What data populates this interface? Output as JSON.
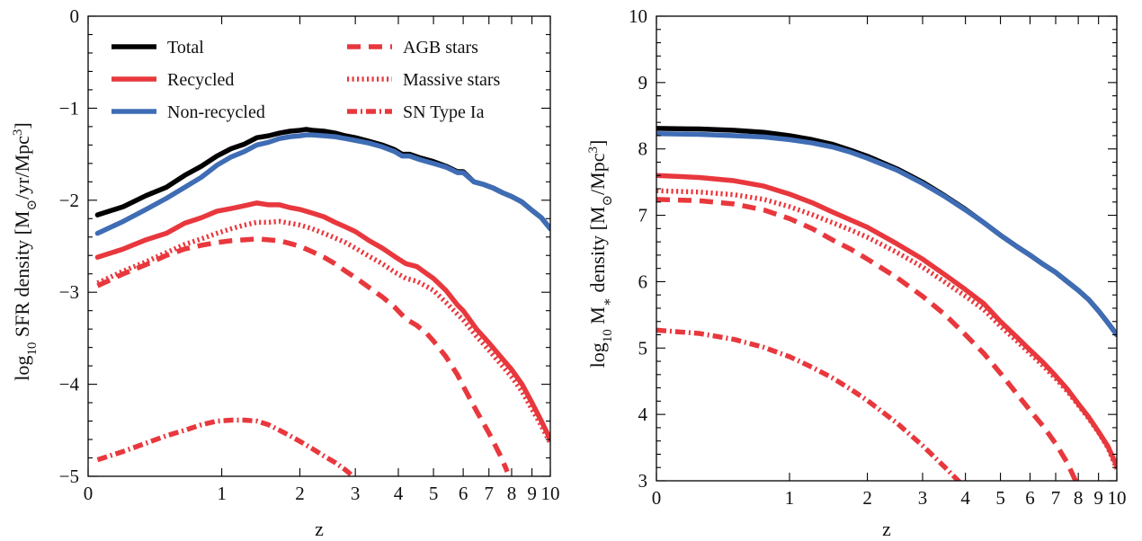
{
  "colors": {
    "total": "#000000",
    "recycled": "#e8383d",
    "nonrecycled": "#3f6db5"
  },
  "legend": [
    {
      "key": "total",
      "label": "Total",
      "color": "#000000",
      "dash": "solid"
    },
    {
      "key": "recycled",
      "label": "Recycled",
      "color": "#e8383d",
      "dash": "solid"
    },
    {
      "key": "nonrecycled",
      "label": "Non-recycled",
      "color": "#3f6db5",
      "dash": "solid"
    },
    {
      "key": "agb",
      "label": "AGB stars",
      "color": "#e8383d",
      "dash": "dashed"
    },
    {
      "key": "massive",
      "label": "Massive stars",
      "color": "#e8383d",
      "dash": "dotted"
    },
    {
      "key": "snia",
      "label": "SN Type Ia",
      "color": "#e8383d",
      "dash": "dashdot"
    }
  ],
  "chart_data": [
    {
      "type": "line",
      "xlabel": "z",
      "ylabel": "log10 SFR density [M⊙/yr/Mpc3]",
      "ylabel_parts": {
        "log": "log",
        "sub": "10",
        "main": " SFR density [M",
        "sun": "⊙",
        "unit": "/yr/Mpc",
        "sup": "3",
        "end": "]"
      },
      "xscale": "log(1+z)",
      "xlim": [
        0,
        10
      ],
      "ylim": [
        -5,
        0
      ],
      "xticks": [
        0,
        1,
        2,
        3,
        4,
        5,
        6,
        7,
        8,
        9,
        10
      ],
      "xtick_labels": [
        "0",
        "1",
        "2",
        "3",
        "4",
        "5",
        "6",
        "7",
        "8",
        "9",
        "10"
      ],
      "yticks": [
        0,
        -1,
        -2,
        -3,
        -4,
        -5
      ],
      "ytick_labels": [
        "0",
        "−1",
        "−2",
        "−3",
        "−4",
        "−5"
      ],
      "legend_position": "top",
      "series": [
        {
          "key": "total",
          "x": [
            0.05,
            0.2,
            0.35,
            0.5,
            0.65,
            0.8,
            0.95,
            1.1,
            1.25,
            1.4,
            1.55,
            1.7,
            1.85,
            2.0,
            2.1,
            2.2,
            2.4,
            2.6,
            2.8,
            3.0,
            3.3,
            3.6,
            3.9,
            4.1,
            4.3,
            4.6,
            5.0,
            5.4,
            5.8,
            6.0,
            6.4,
            6.8,
            7.2,
            7.6,
            8.0,
            8.5,
            9.0,
            9.5,
            10.0
          ],
          "y": [
            -2.16,
            -2.07,
            -1.95,
            -1.86,
            -1.73,
            -1.63,
            -1.52,
            -1.44,
            -1.39,
            -1.32,
            -1.3,
            -1.27,
            -1.25,
            -1.24,
            -1.23,
            -1.24,
            -1.25,
            -1.27,
            -1.3,
            -1.32,
            -1.36,
            -1.4,
            -1.45,
            -1.5,
            -1.5,
            -1.54,
            -1.58,
            -1.63,
            -1.69,
            -1.69,
            -1.8,
            -1.83,
            -1.87,
            -1.92,
            -1.96,
            -2.02,
            -2.11,
            -2.19,
            -2.31
          ]
        },
        {
          "key": "nonrecycled",
          "x": [
            0.05,
            0.2,
            0.35,
            0.5,
            0.65,
            0.8,
            0.95,
            1.1,
            1.25,
            1.4,
            1.55,
            1.7,
            1.85,
            2.0,
            2.1,
            2.2,
            2.4,
            2.6,
            2.8,
            3.0,
            3.3,
            3.6,
            3.9,
            4.1,
            4.3,
            4.6,
            5.0,
            5.4,
            5.8,
            6.0,
            6.4,
            6.8,
            7.2,
            7.6,
            8.0,
            8.5,
            9.0,
            9.5,
            10.0
          ],
          "y": [
            -2.36,
            -2.23,
            -2.1,
            -1.98,
            -1.86,
            -1.75,
            -1.62,
            -1.53,
            -1.47,
            -1.4,
            -1.37,
            -1.33,
            -1.31,
            -1.3,
            -1.29,
            -1.29,
            -1.3,
            -1.31,
            -1.33,
            -1.35,
            -1.38,
            -1.42,
            -1.47,
            -1.52,
            -1.52,
            -1.56,
            -1.6,
            -1.64,
            -1.7,
            -1.7,
            -1.8,
            -1.83,
            -1.87,
            -1.92,
            -1.96,
            -2.02,
            -2.11,
            -2.19,
            -2.31
          ]
        },
        {
          "key": "recycled",
          "x": [
            0.05,
            0.2,
            0.35,
            0.5,
            0.65,
            0.8,
            0.95,
            1.1,
            1.25,
            1.4,
            1.55,
            1.7,
            1.85,
            2.0,
            2.2,
            2.4,
            2.6,
            2.8,
            3.0,
            3.3,
            3.6,
            3.9,
            4.2,
            4.5,
            4.8,
            5.0,
            5.4,
            5.8,
            6.0,
            6.5,
            7.0,
            7.5,
            8.0,
            8.5,
            9.0,
            9.5,
            10.0
          ],
          "y": [
            -2.62,
            -2.53,
            -2.43,
            -2.36,
            -2.25,
            -2.19,
            -2.12,
            -2.09,
            -2.06,
            -2.03,
            -2.05,
            -2.05,
            -2.08,
            -2.1,
            -2.14,
            -2.18,
            -2.24,
            -2.29,
            -2.34,
            -2.44,
            -2.52,
            -2.61,
            -2.69,
            -2.72,
            -2.8,
            -2.85,
            -2.98,
            -3.14,
            -3.2,
            -3.4,
            -3.55,
            -3.7,
            -3.84,
            -4.0,
            -4.2,
            -4.4,
            -4.6
          ]
        },
        {
          "key": "massive",
          "x": [
            0.05,
            0.2,
            0.35,
            0.5,
            0.65,
            0.8,
            0.95,
            1.1,
            1.25,
            1.4,
            1.55,
            1.7,
            1.85,
            2.0,
            2.2,
            2.4,
            2.6,
            2.8,
            3.0,
            3.3,
            3.6,
            3.9,
            4.2,
            4.5,
            4.8,
            5.0,
            5.4,
            5.8,
            6.0,
            6.5,
            7.0,
            7.5,
            8.0,
            8.5,
            9.0,
            9.5,
            10.0
          ],
          "y": [
            -2.9,
            -2.77,
            -2.67,
            -2.57,
            -2.48,
            -2.42,
            -2.36,
            -2.31,
            -2.27,
            -2.24,
            -2.24,
            -2.23,
            -2.25,
            -2.27,
            -2.31,
            -2.36,
            -2.41,
            -2.46,
            -2.52,
            -2.61,
            -2.69,
            -2.78,
            -2.85,
            -2.88,
            -2.94,
            -2.98,
            -3.11,
            -3.24,
            -3.3,
            -3.48,
            -3.63,
            -3.78,
            -3.92,
            -4.08,
            -4.27,
            -4.45,
            -4.64
          ]
        },
        {
          "key": "agb",
          "x": [
            0.05,
            0.2,
            0.35,
            0.5,
            0.65,
            0.8,
            0.95,
            1.1,
            1.25,
            1.4,
            1.55,
            1.7,
            1.85,
            2.0,
            2.2,
            2.4,
            2.6,
            2.8,
            3.0,
            3.3,
            3.6,
            3.9,
            4.2,
            4.5,
            4.8,
            5.0,
            5.4,
            5.8,
            6.0,
            6.5,
            7.0,
            7.5,
            7.8
          ],
          "y": [
            -2.93,
            -2.8,
            -2.7,
            -2.6,
            -2.53,
            -2.49,
            -2.46,
            -2.44,
            -2.43,
            -2.42,
            -2.43,
            -2.44,
            -2.47,
            -2.5,
            -2.56,
            -2.62,
            -2.69,
            -2.77,
            -2.84,
            -2.95,
            -3.05,
            -3.16,
            -3.29,
            -3.36,
            -3.45,
            -3.53,
            -3.7,
            -3.9,
            -4.02,
            -4.29,
            -4.53,
            -4.78,
            -4.95
          ]
        },
        {
          "key": "snia",
          "x": [
            0.05,
            0.2,
            0.35,
            0.5,
            0.65,
            0.8,
            0.95,
            1.1,
            1.25,
            1.4,
            1.55,
            1.7,
            1.85,
            2.0,
            2.2,
            2.4,
            2.6,
            2.8,
            2.95
          ],
          "y": [
            -4.82,
            -4.73,
            -4.64,
            -4.56,
            -4.5,
            -4.44,
            -4.4,
            -4.39,
            -4.39,
            -4.4,
            -4.44,
            -4.5,
            -4.56,
            -4.62,
            -4.7,
            -4.78,
            -4.85,
            -4.93,
            -5.0
          ]
        }
      ]
    },
    {
      "type": "line",
      "xlabel": "z",
      "ylabel": "log10 M∗ density [M⊙/Mpc3]",
      "ylabel_parts": {
        "log": "log",
        "sub": "10",
        "main": " M",
        "star": "∗",
        "mid": " density [M",
        "sun": "⊙",
        "unit": "/Mpc",
        "sup": "3",
        "end": "]"
      },
      "xscale": "log(1+z)",
      "xlim": [
        0,
        10
      ],
      "ylim": [
        3,
        10
      ],
      "xticks": [
        0,
        1,
        2,
        3,
        4,
        5,
        6,
        7,
        8,
        9,
        10
      ],
      "xtick_labels": [
        "0",
        "1",
        "2",
        "3",
        "4",
        "5",
        "6",
        "7",
        "8",
        "9",
        "10"
      ],
      "yticks": [
        3,
        4,
        5,
        6,
        7,
        8,
        9,
        10
      ],
      "ytick_labels": [
        "3",
        "4",
        "5",
        "6",
        "7",
        "8",
        "9",
        "10"
      ],
      "series": [
        {
          "key": "total",
          "x": [
            0,
            0.25,
            0.5,
            0.75,
            1.0,
            1.25,
            1.5,
            1.75,
            2.0,
            2.5,
            3.0,
            3.5,
            4.0,
            4.5,
            5.0,
            5.5,
            6.0,
            6.5,
            7.0,
            7.5,
            8.0,
            8.5,
            9.0,
            9.5,
            10.0
          ],
          "y": [
            8.31,
            8.3,
            8.28,
            8.25,
            8.2,
            8.14,
            8.07,
            7.98,
            7.89,
            7.7,
            7.5,
            7.29,
            7.09,
            6.89,
            6.7,
            6.54,
            6.4,
            6.26,
            6.14,
            6.0,
            5.87,
            5.73,
            5.56,
            5.38,
            5.2
          ]
        },
        {
          "key": "nonrecycled",
          "x": [
            0,
            0.25,
            0.5,
            0.75,
            1.0,
            1.25,
            1.5,
            1.75,
            2.0,
            2.5,
            3.0,
            3.5,
            4.0,
            4.5,
            5.0,
            5.5,
            6.0,
            6.5,
            7.0,
            7.5,
            8.0,
            8.5,
            9.0,
            9.5,
            10.0
          ],
          "y": [
            8.23,
            8.22,
            8.2,
            8.18,
            8.14,
            8.09,
            8.03,
            7.95,
            7.86,
            7.68,
            7.48,
            7.28,
            7.08,
            6.89,
            6.7,
            6.54,
            6.4,
            6.26,
            6.14,
            6.0,
            5.87,
            5.73,
            5.56,
            5.38,
            5.2
          ]
        },
        {
          "key": "recycled",
          "x": [
            0,
            0.25,
            0.5,
            0.75,
            1.0,
            1.25,
            1.5,
            1.75,
            2.0,
            2.5,
            3.0,
            3.5,
            4.0,
            4.5,
            5.0,
            5.5,
            6.0,
            6.5,
            7.0,
            7.5,
            8.0,
            8.5,
            9.0,
            9.5,
            10.0
          ],
          "y": [
            7.6,
            7.57,
            7.52,
            7.44,
            7.32,
            7.19,
            7.05,
            6.93,
            6.82,
            6.57,
            6.34,
            6.1,
            5.88,
            5.67,
            5.4,
            5.18,
            4.97,
            4.78,
            4.58,
            4.38,
            4.16,
            3.96,
            3.74,
            3.52,
            3.22
          ]
        },
        {
          "key": "massive",
          "x": [
            0,
            0.25,
            0.5,
            0.75,
            1.0,
            1.25,
            1.5,
            1.75,
            2.0,
            2.5,
            3.0,
            3.5,
            4.0,
            4.5,
            5.0,
            5.5,
            6.0,
            6.5,
            7.0,
            7.5,
            8.0,
            8.5,
            9.0,
            9.5,
            10.0
          ],
          "y": [
            7.37,
            7.35,
            7.31,
            7.24,
            7.13,
            7.01,
            6.89,
            6.78,
            6.67,
            6.44,
            6.22,
            5.99,
            5.78,
            5.58,
            5.33,
            5.12,
            4.92,
            4.73,
            4.54,
            4.35,
            4.14,
            3.94,
            3.73,
            3.5,
            3.18
          ]
        },
        {
          "key": "agb",
          "x": [
            0,
            0.25,
            0.5,
            0.75,
            1.0,
            1.25,
            1.5,
            1.75,
            2.0,
            2.5,
            3.0,
            3.5,
            4.0,
            4.5,
            5.0,
            5.5,
            6.0,
            6.5,
            7.0,
            7.5,
            7.9
          ],
          "y": [
            7.24,
            7.22,
            7.17,
            7.08,
            6.95,
            6.8,
            6.63,
            6.49,
            6.34,
            6.06,
            5.78,
            5.5,
            5.2,
            4.92,
            4.62,
            4.33,
            4.06,
            3.82,
            3.56,
            3.27,
            2.98
          ]
        },
        {
          "key": "snia",
          "x": [
            0,
            0.25,
            0.5,
            0.75,
            1.0,
            1.25,
            1.5,
            1.75,
            2.0,
            2.5,
            3.0,
            3.5,
            3.85
          ],
          "y": [
            5.27,
            5.22,
            5.13,
            5.01,
            4.87,
            4.71,
            4.55,
            4.38,
            4.21,
            3.87,
            3.53,
            3.2,
            2.98
          ]
        }
      ]
    }
  ]
}
